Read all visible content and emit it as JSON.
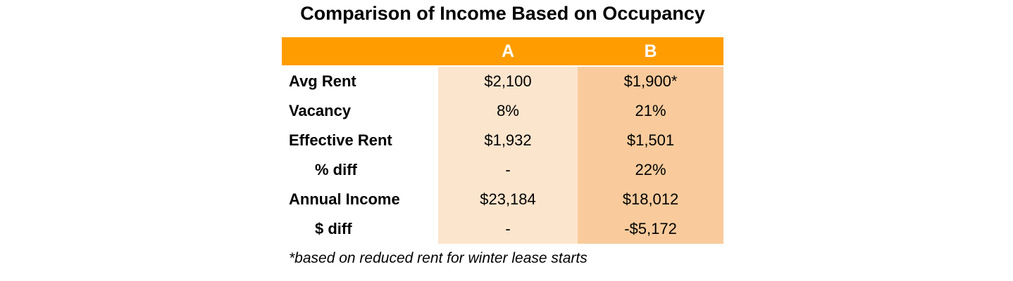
{
  "title": "Comparison of Income Based on Occupancy",
  "table": {
    "col_a_header": "A",
    "col_b_header": "B",
    "rows": [
      {
        "label": "Avg Rent",
        "a": "$2,100",
        "b": "$1,900*"
      },
      {
        "label": "Vacancy",
        "a": "8%",
        "b": "21%"
      },
      {
        "label": "Effective Rent",
        "a": "$1,932",
        "b": "$1,501"
      },
      {
        "label": "% diff",
        "a": "-",
        "b": "22%"
      },
      {
        "label": "Annual Income",
        "a": "$23,184",
        "b": "$18,012"
      },
      {
        "label": "$ diff",
        "a": "-",
        "b": "-$5,172"
      }
    ]
  },
  "footnote": "*based on reduced rent for winter lease starts",
  "colors": {
    "header_bg": "#FF9D00",
    "header_text": "#FFFFFF",
    "col_a_bg": "#FCE5CD",
    "col_b_bg": "#F9CB9C",
    "text": "#000000",
    "page_bg": "#FFFFFF"
  },
  "chart_data": {
    "type": "table",
    "title": "Comparison of Income Based on Occupancy",
    "columns": [
      "",
      "A",
      "B"
    ],
    "rows": [
      [
        "Avg Rent",
        "$2,100",
        "$1,900*"
      ],
      [
        "Vacancy",
        "8%",
        "21%"
      ],
      [
        "Effective Rent",
        "$1,932",
        "$1,501"
      ],
      [
        "% diff",
        "-",
        "22%"
      ],
      [
        "Annual Income",
        "$23,184",
        "$18,012"
      ],
      [
        "$ diff",
        "-",
        "-$5,172"
      ]
    ],
    "footnote": "*based on reduced rent for winter lease starts"
  }
}
